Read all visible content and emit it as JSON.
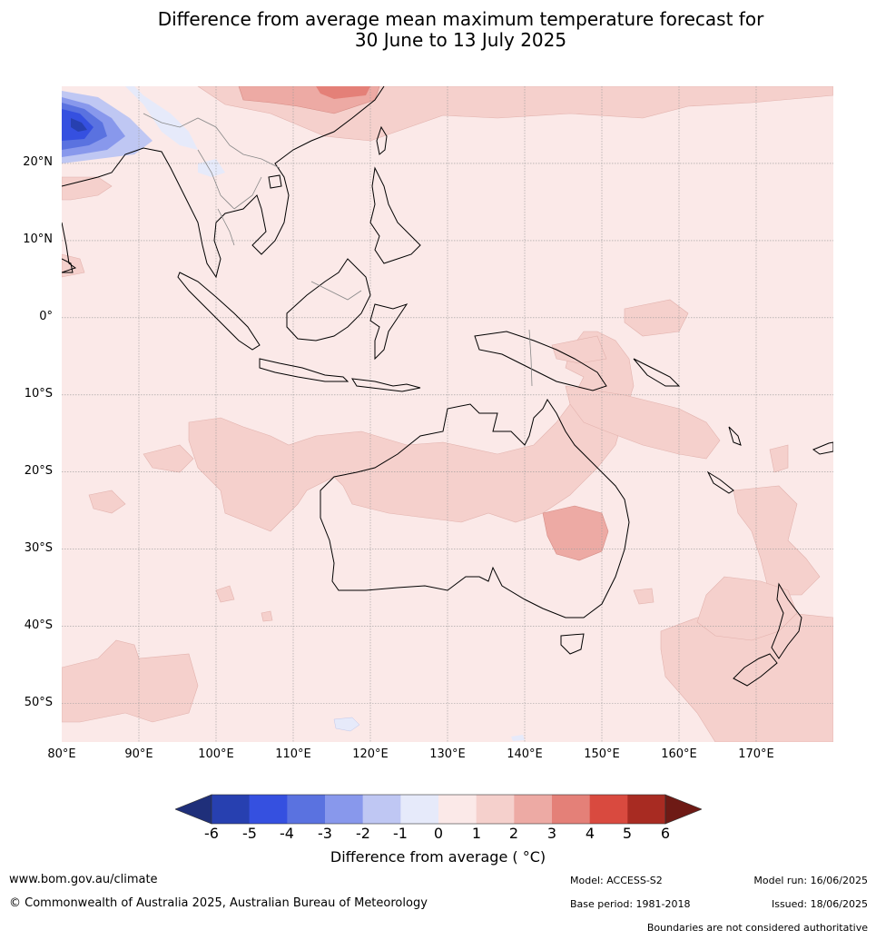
{
  "title_line1": "Difference from average mean maximum temperature forecast for",
  "title_line2": "30 June to 13 July 2025",
  "map": {
    "lon_range": [
      80,
      180
    ],
    "lat_range": [
      -55,
      30
    ],
    "lat_labels": [
      "20°N",
      "10°N",
      "0°",
      "10°S",
      "20°S",
      "30°S",
      "40°S",
      "50°S"
    ],
    "lon_labels": [
      "80°E",
      "90°E",
      "100°E",
      "110°E",
      "120°E",
      "130°E",
      "140°E",
      "150°E",
      "160°E",
      "170°E"
    ],
    "background_color": "#fbe9e8",
    "land_outline_color": "#000000",
    "border_color": "#888888",
    "gridline_color": "#999999"
  },
  "colorbar": {
    "tick_labels": [
      "-6",
      "-5",
      "-4",
      "-3",
      "-2",
      "-1",
      "0",
      "1",
      "2",
      "3",
      "4",
      "5",
      "6"
    ],
    "colors": [
      "#1f2f7a",
      "#2740b0",
      "#3550e0",
      "#5a72e0",
      "#8898ec",
      "#bfc7f3",
      "#e6eafa",
      "#fbe9e8",
      "#f5d0cc",
      "#edaaa4",
      "#e48078",
      "#d94a3f",
      "#a82b22",
      "#6e1a15"
    ],
    "label": "Difference from average ( °C)"
  },
  "footer": {
    "website": "www.bom.gov.au/climate",
    "copyright": "© Commonwealth of Australia 2025, Australian Bureau of Meteorology",
    "model": "Model: ACCESS-S2",
    "base_period": "Base period: 1981-2018",
    "model_run": "Model run: 16/06/2025",
    "issued": "Issued: 18/06/2025",
    "disclaimer": "Boundaries are not considered authoritative"
  }
}
